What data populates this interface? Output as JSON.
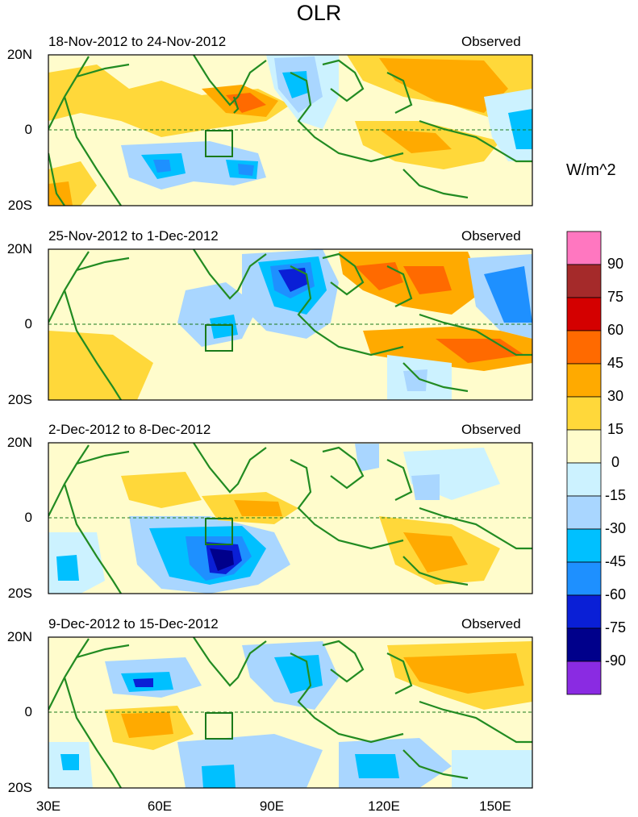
{
  "title": "OLR",
  "unit_label": "W/m^2",
  "panels": [
    {
      "period": "18-Nov-2012 to 24-Nov-2012",
      "type": "Observed"
    },
    {
      "period": "25-Nov-2012 to 1-Dec-2012",
      "type": "Observed"
    },
    {
      "period": "2-Dec-2012 to 8-Dec-2012",
      "type": "Observed"
    },
    {
      "period": "9-Dec-2012 to 15-Dec-2012",
      "type": "Observed"
    }
  ],
  "lat_labels": [
    "20N",
    "0",
    "20S"
  ],
  "lon_labels": [
    "30E",
    "60E",
    "90E",
    "120E",
    "150E"
  ],
  "colorbar": {
    "labels": [
      "90",
      "75",
      "60",
      "45",
      "30",
      "15",
      "0",
      "-15",
      "-30",
      "-45",
      "-60",
      "-75",
      "-90"
    ],
    "colors": [
      "#ff77c0",
      "#a52a2a",
      "#d40000",
      "#ff6a00",
      "#ffaa00",
      "#ffd83a",
      "#fffccc",
      "#ccf2ff",
      "#a9d6ff",
      "#00c0ff",
      "#1e90ff",
      "#0a1fd6",
      "#00008b",
      "#8a2be2"
    ]
  },
  "map": {
    "lat_range": [
      -20,
      20
    ],
    "lon_range": [
      30,
      160
    ],
    "box_color": "#1a7a1a",
    "land_color": "#228b22"
  }
}
